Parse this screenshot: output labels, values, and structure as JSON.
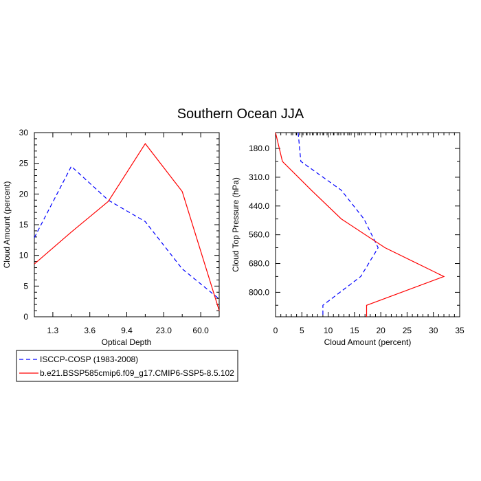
{
  "title": "Southern Ocean JJA",
  "colors": {
    "isccp": "#0000ff",
    "cesm": "#ff0000",
    "axis": "#000000"
  },
  "legend": {
    "entries": [
      {
        "label": "ISCCP-COSP (1983-2008)",
        "color": "#0000ff",
        "dash": "dashed"
      },
      {
        "label": "b.e21.BSSP585cmip6.f09_g17.CMIP6-SSP5-8.5.102",
        "color": "#ff0000",
        "dash": "solid"
      }
    ]
  },
  "chart_data": [
    {
      "type": "line",
      "xlabel": "Optical Depth",
      "ylabel": "Cloud Amount (percent)",
      "xtick_labels": [
        "1.3",
        "3.6",
        "9.4",
        "23.0",
        "60.0"
      ],
      "ylim": [
        0,
        30
      ],
      "yticks": [
        0,
        5,
        10,
        15,
        20,
        25,
        30
      ],
      "series": [
        {
          "name": "ISCCP-COSP (1983-2008)",
          "x": [
            "0.3",
            "1.3-3.6",
            "3.6-9.4",
            "9.4-23.0",
            "23.0-60.0",
            "60.0-380"
          ],
          "values": [
            12.9,
            24.5,
            19.0,
            15.5,
            7.8,
            2.9
          ]
        },
        {
          "name": "b.e21.BSSP585cmip6.f09_g17.CMIP6-SSP5-8.5.102",
          "x": [
            "0.3",
            "1.3-3.6",
            "3.6-9.4",
            "9.4-23.0",
            "23.0-60.0",
            "60.0-380"
          ],
          "values": [
            8.6,
            13.8,
            18.8,
            28.2,
            20.4,
            1.0
          ]
        }
      ]
    },
    {
      "type": "line",
      "xlabel": "Cloud Amount (percent)",
      "ylabel": "Cloud Top Pressure (hPa)",
      "xlim": [
        0,
        35
      ],
      "xticks": [
        0,
        5,
        10,
        15,
        20,
        25,
        30,
        35
      ],
      "ytick_labels": [
        "180.0",
        "310.0",
        "440.0",
        "560.0",
        "680.0",
        "800.0"
      ],
      "y_orientation": "pressure increases downward",
      "series": [
        {
          "name": "ISCCP-COSP (1983-2008)",
          "pressure": [
            "50-180",
            "180-310",
            "310-440",
            "440-560",
            "560-680",
            "680-800",
            "800-1000",
            "1000"
          ],
          "values": [
            4.3,
            4.8,
            12.5,
            16.8,
            19.5,
            16.2,
            9.0,
            9.0
          ]
        },
        {
          "name": "b.e21.BSSP585cmip6.f09_g17.CMIP6-SSP5-8.5.102",
          "pressure": [
            "50-180",
            "180-310",
            "310-440",
            "440-560",
            "560-680",
            "680-800",
            "800-1000",
            "1000"
          ],
          "values": [
            0.0,
            1.3,
            6.8,
            12.5,
            20.8,
            32.0,
            17.3,
            17.3
          ]
        }
      ]
    }
  ]
}
